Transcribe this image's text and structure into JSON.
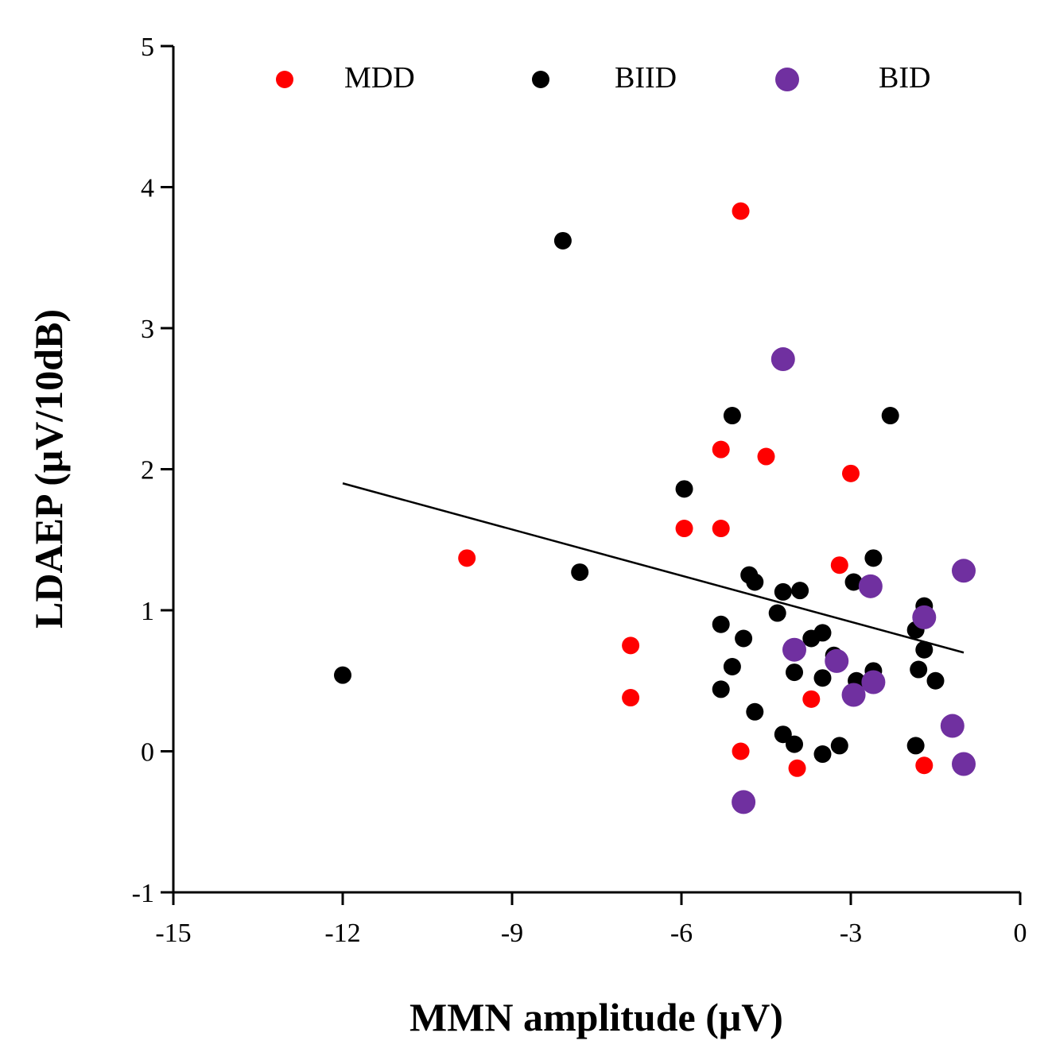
{
  "chart_data": {
    "type": "scatter",
    "title": "",
    "xlabel": "MMN amplitude (μV)",
    "ylabel": "LDAEP (μV/10dB)",
    "xlim": [
      -15,
      0
    ],
    "ylim": [
      -1,
      5
    ],
    "x_ticks": [
      -15,
      -12,
      -9,
      -6,
      -3,
      0
    ],
    "y_ticks": [
      -1,
      0,
      1,
      2,
      3,
      4,
      5
    ],
    "x_tick_labels": [
      "-15",
      "-12",
      "-9",
      "-6",
      "-3",
      "0"
    ],
    "y_tick_labels": [
      "-1",
      "0",
      "1",
      "2",
      "3",
      "4",
      "5"
    ],
    "grid": false,
    "legend_position": "top",
    "series": [
      {
        "name": "MDD",
        "color": "#ff0000",
        "marker": "small",
        "points": [
          [
            -4.95,
            3.83
          ],
          [
            -9.8,
            1.37
          ],
          [
            -5.3,
            2.14
          ],
          [
            -4.5,
            2.09
          ],
          [
            -3.0,
            1.97
          ],
          [
            -5.95,
            1.58
          ],
          [
            -5.3,
            1.58
          ],
          [
            -3.2,
            1.32
          ],
          [
            -6.9,
            0.75
          ],
          [
            -6.9,
            0.38
          ],
          [
            -3.7,
            0.37
          ],
          [
            -4.95,
            0.0
          ],
          [
            -3.95,
            -0.12
          ],
          [
            -1.7,
            -0.1
          ]
        ]
      },
      {
        "name": "BIID",
        "color": "#000000",
        "marker": "small",
        "points": [
          [
            -8.1,
            3.62
          ],
          [
            -12.0,
            0.54
          ],
          [
            -7.8,
            1.27
          ],
          [
            -5.95,
            1.86
          ],
          [
            -5.1,
            2.38
          ],
          [
            -2.3,
            2.38
          ],
          [
            -4.8,
            1.25
          ],
          [
            -4.7,
            1.2
          ],
          [
            -4.2,
            1.13
          ],
          [
            -3.9,
            1.14
          ],
          [
            -4.3,
            0.98
          ],
          [
            -5.3,
            0.9
          ],
          [
            -4.9,
            0.8
          ],
          [
            -3.7,
            0.8
          ],
          [
            -3.5,
            0.84
          ],
          [
            -5.1,
            0.6
          ],
          [
            -4.0,
            0.56
          ],
          [
            -3.5,
            0.52
          ],
          [
            -3.3,
            0.68
          ],
          [
            -5.3,
            0.44
          ],
          [
            -4.7,
            0.28
          ],
          [
            -4.2,
            0.12
          ],
          [
            -4.0,
            0.05
          ],
          [
            -3.5,
            -0.02
          ],
          [
            -3.2,
            0.04
          ],
          [
            -2.95,
            1.2
          ],
          [
            -2.6,
            1.37
          ],
          [
            -2.6,
            0.57
          ],
          [
            -2.9,
            0.5
          ],
          [
            -1.7,
            1.03
          ],
          [
            -1.7,
            0.72
          ],
          [
            -1.85,
            0.86
          ],
          [
            -1.8,
            0.58
          ],
          [
            -1.5,
            0.5
          ],
          [
            -1.85,
            0.04
          ]
        ]
      },
      {
        "name": "BID",
        "color": "#7030a0",
        "marker": "large",
        "points": [
          [
            -4.2,
            2.78
          ],
          [
            -2.65,
            1.17
          ],
          [
            -1.7,
            0.95
          ],
          [
            -4.0,
            0.72
          ],
          [
            -3.25,
            0.64
          ],
          [
            -2.6,
            0.49
          ],
          [
            -2.95,
            0.4
          ],
          [
            -1.0,
            1.28
          ],
          [
            -1.2,
            0.18
          ],
          [
            -1.0,
            -0.09
          ],
          [
            -4.9,
            -0.36
          ]
        ]
      }
    ],
    "trend_line": {
      "x": [
        -12,
        -1
      ],
      "y": [
        1.9,
        0.7
      ]
    }
  }
}
